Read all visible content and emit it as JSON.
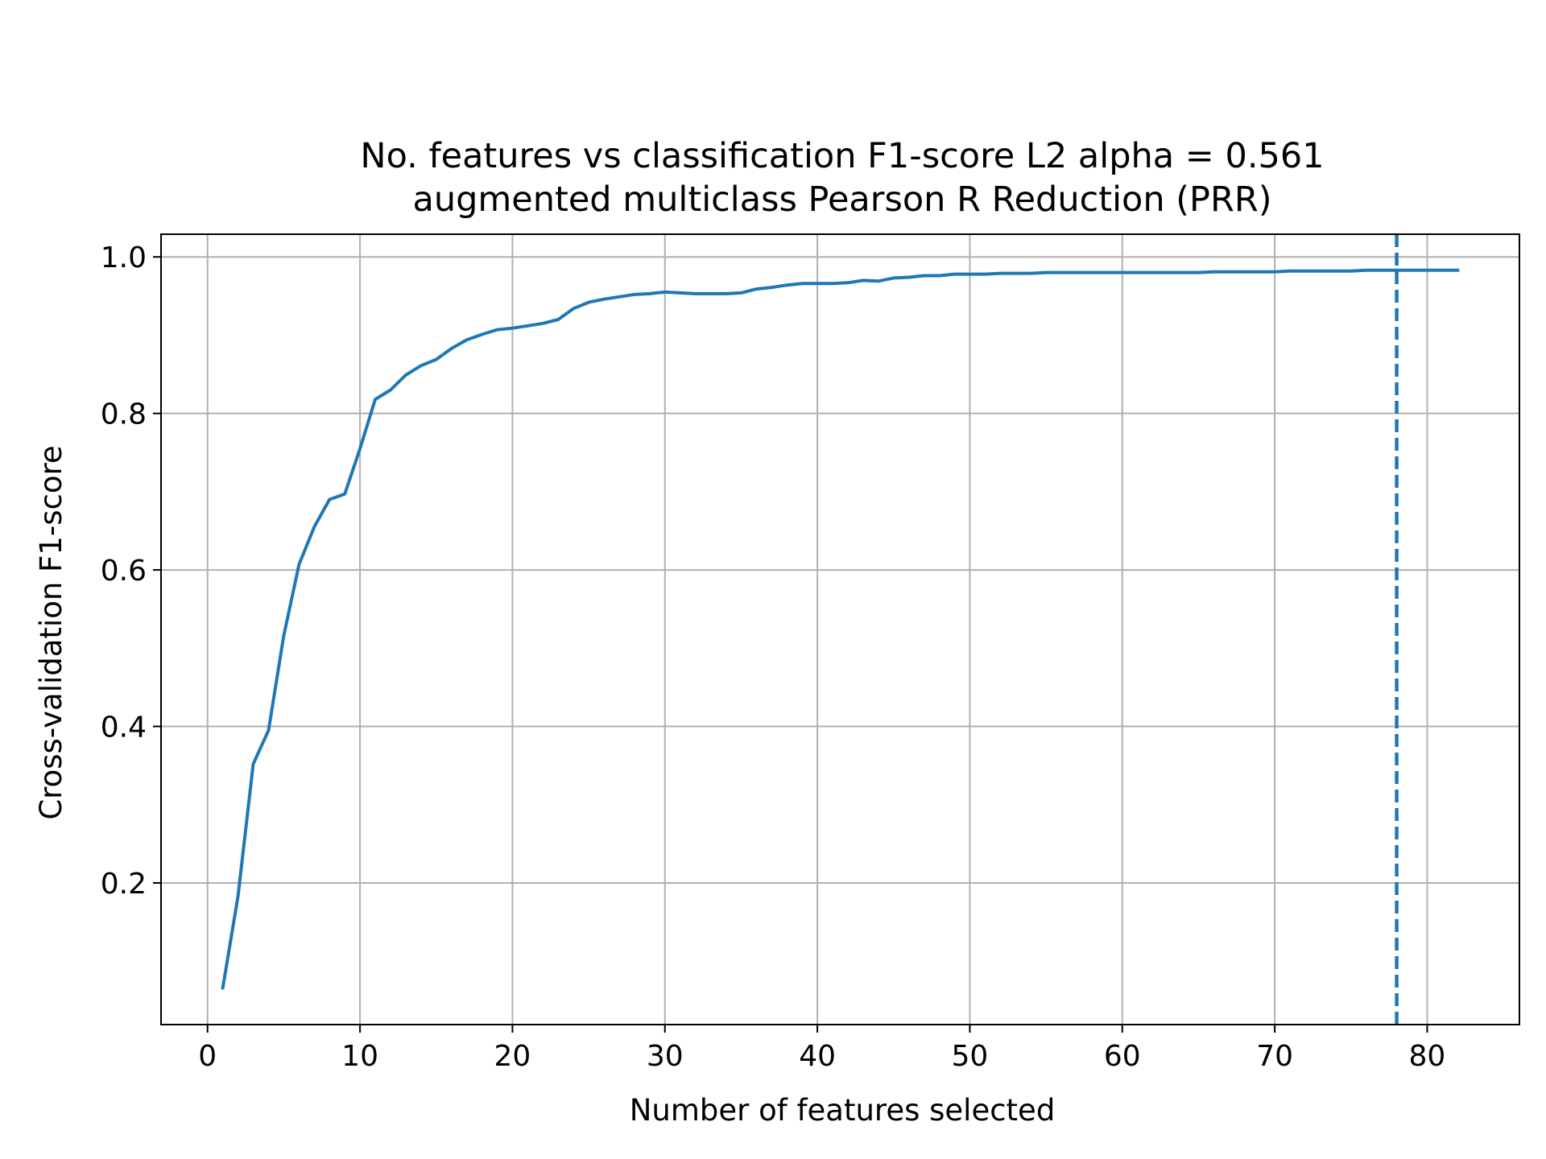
{
  "chart_data": {
    "type": "line",
    "title": "No. features vs classification F1-score L2 alpha = 0.561",
    "subtitle": "augmented multiclass Pearson R Reduction (PRR)",
    "xlabel": "Number of features selected",
    "ylabel": "Cross-validation F1-score",
    "xlim": [
      -3.05,
      86.05
    ],
    "ylim": [
      0.019,
      1.029
    ],
    "xticks": [
      0,
      10,
      20,
      30,
      40,
      50,
      60,
      70,
      80
    ],
    "xtick_labels": [
      "0",
      "10",
      "20",
      "30",
      "40",
      "50",
      "60",
      "70",
      "80"
    ],
    "yticks": [
      0.2,
      0.4,
      0.6,
      0.8,
      1.0
    ],
    "ytick_labels": [
      "0.2",
      "0.4",
      "0.6",
      "0.8",
      "1.0"
    ],
    "grid": true,
    "line_color": "#1f77b4",
    "vline": {
      "x": 78,
      "style": "dashed",
      "color": "#1f77b4"
    },
    "series": [
      {
        "x": [
          1,
          2,
          3,
          4,
          5,
          6,
          7,
          8,
          9,
          10,
          11,
          12,
          13,
          14,
          15,
          16,
          17,
          18,
          19,
          20,
          21,
          22,
          23,
          24,
          25,
          26,
          27,
          28,
          29,
          30,
          31,
          32,
          33,
          34,
          35,
          36,
          37,
          38,
          39,
          40,
          41,
          42,
          43,
          44,
          45,
          46,
          47,
          48,
          49,
          50,
          51,
          52,
          53,
          54,
          55,
          56,
          57,
          58,
          59,
          60,
          61,
          62,
          63,
          64,
          65,
          66,
          67,
          68,
          69,
          70,
          71,
          72,
          73,
          74,
          75,
          76,
          77,
          78,
          79,
          80,
          81,
          82
        ],
        "values": [
          0.066,
          0.183,
          0.352,
          0.395,
          0.516,
          0.607,
          0.655,
          0.69,
          0.697,
          0.755,
          0.818,
          0.83,
          0.849,
          0.861,
          0.869,
          0.883,
          0.894,
          0.901,
          0.907,
          0.909,
          0.912,
          0.915,
          0.92,
          0.934,
          0.942,
          0.946,
          0.949,
          0.952,
          0.953,
          0.955,
          0.954,
          0.953,
          0.953,
          0.953,
          0.954,
          0.959,
          0.961,
          0.964,
          0.966,
          0.966,
          0.966,
          0.967,
          0.97,
          0.969,
          0.973,
          0.974,
          0.976,
          0.976,
          0.978,
          0.978,
          0.978,
          0.979,
          0.979,
          0.979,
          0.98,
          0.98,
          0.98,
          0.98,
          0.98,
          0.98,
          0.98,
          0.98,
          0.98,
          0.98,
          0.98,
          0.981,
          0.981,
          0.981,
          0.981,
          0.981,
          0.982,
          0.982,
          0.982,
          0.982,
          0.982,
          0.983,
          0.983,
          0.983,
          0.983,
          0.983,
          0.983,
          0.983
        ]
      }
    ]
  }
}
